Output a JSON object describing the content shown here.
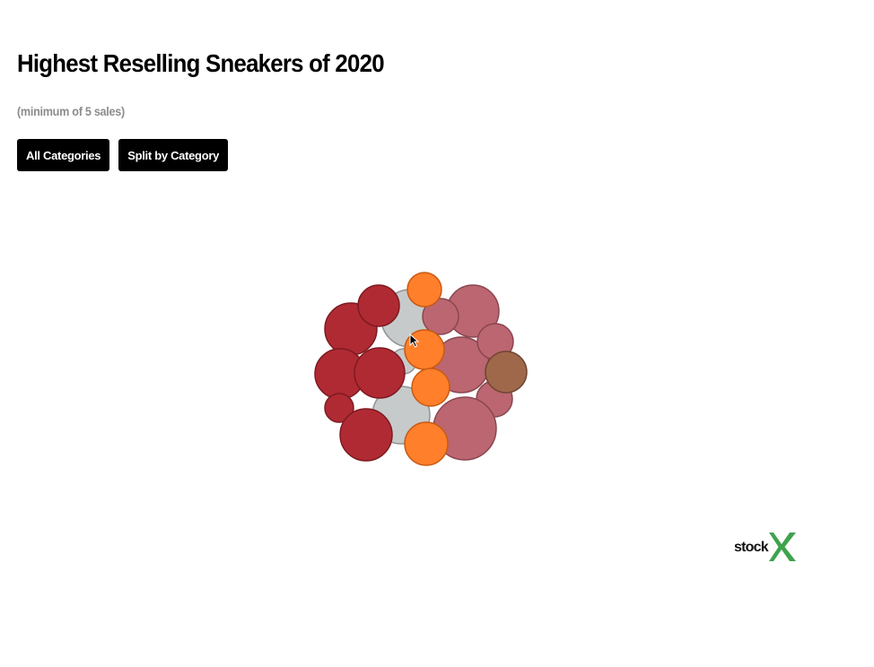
{
  "header": {
    "title": "Highest Reselling Sneakers of 2020",
    "subtitle": "(minimum of 5 sales)"
  },
  "controls": {
    "all_categories_label": "All Categories",
    "split_by_category_label": "Split by Category"
  },
  "logo": {
    "text": "stock",
    "mark": "X",
    "brand_color": "#3fa34d"
  },
  "chart_data": {
    "type": "bubble",
    "layout": "packed cluster",
    "title": "Highest Reselling Sneakers of 2020",
    "subtitle": "(minimum of 5 sales)",
    "view": "All Categories",
    "size_legend": "none",
    "color_legend": "none",
    "groups": [
      {
        "color": "#b02a33",
        "stroke": "#7e1a22"
      },
      {
        "color": "#ff7f2a",
        "stroke": "#c85a14"
      },
      {
        "color": "#bb6670",
        "stroke": "#8a4650"
      },
      {
        "color": "#c7cacb",
        "stroke": "#8f9395"
      },
      {
        "color": "#a0684a",
        "stroke": "#6e4531"
      }
    ],
    "bubbles": [
      {
        "group": 3,
        "r": 32
      },
      {
        "group": 3,
        "r": 32
      },
      {
        "group": 3,
        "r": 14
      },
      {
        "group": 0,
        "r": 29
      },
      {
        "group": 0,
        "r": 23
      },
      {
        "group": 0,
        "r": 28
      },
      {
        "group": 0,
        "r": 28
      },
      {
        "group": 0,
        "r": 16
      },
      {
        "group": 0,
        "r": 29
      },
      {
        "group": 2,
        "r": 29
      },
      {
        "group": 2,
        "r": 20
      },
      {
        "group": 2,
        "r": 31
      },
      {
        "group": 2,
        "r": 20
      },
      {
        "group": 2,
        "r": 20
      },
      {
        "group": 2,
        "r": 35
      },
      {
        "group": 4,
        "r": 23
      },
      {
        "group": 1,
        "r": 19
      },
      {
        "group": 1,
        "r": 22
      },
      {
        "group": 1,
        "r": 21
      },
      {
        "group": 1,
        "r": 24
      }
    ]
  }
}
